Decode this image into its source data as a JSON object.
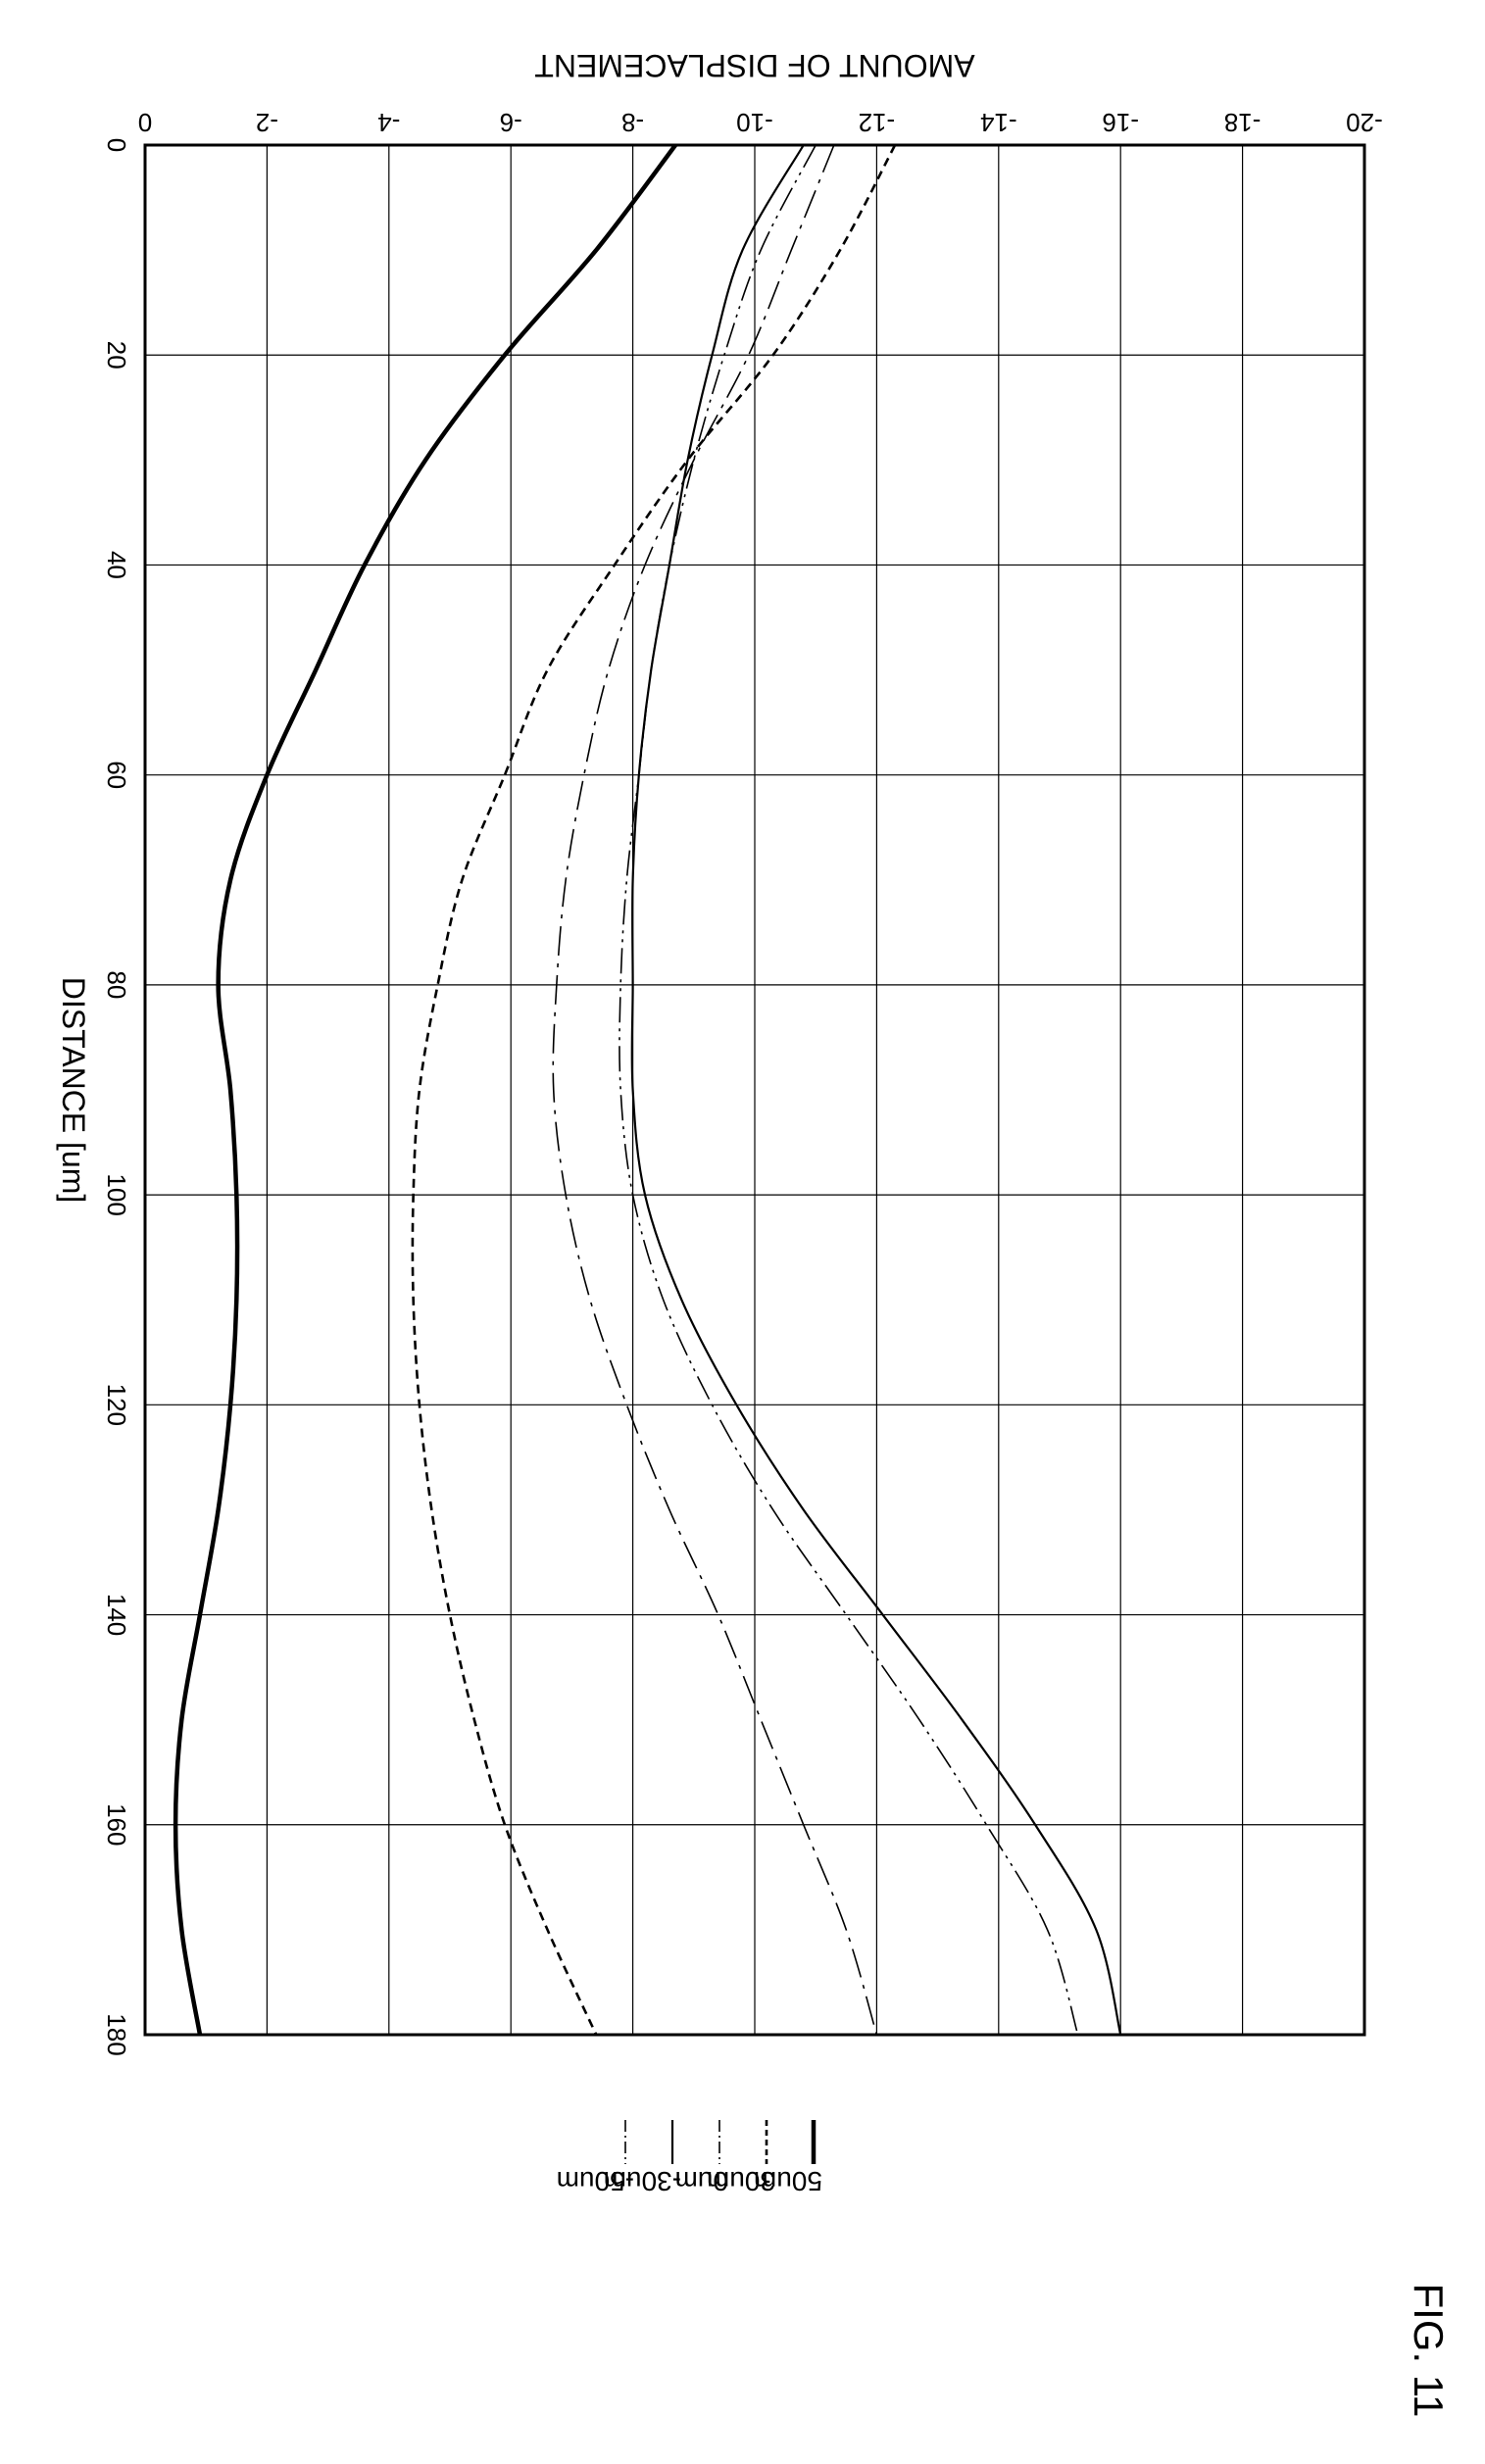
{
  "figure_label": "FIG. 11",
  "chart_data": {
    "type": "line",
    "xlabel": "DISTANCE  [um]",
    "ylabel": "AMOUNT OF DISPLACEMENT",
    "xlim": [
      0,
      180
    ],
    "ylim": [
      -20,
      0
    ],
    "x_ticks": [
      "0",
      "20",
      "40",
      "60",
      "80",
      "100",
      "120",
      "140",
      "160",
      "180"
    ],
    "y_ticks": [
      "-20",
      "-18",
      "-16",
      "-14",
      "-12",
      "-10",
      "-8",
      "-6",
      "-4",
      "-2",
      "0"
    ],
    "grid": true,
    "legend_position": "below plot (rotated)",
    "x": [
      0,
      10,
      20,
      30,
      40,
      50,
      60,
      70,
      80,
      90,
      100,
      110,
      120,
      130,
      140,
      150,
      160,
      170,
      180
    ],
    "series": [
      {
        "name": "-50um",
        "style": "dash-dot",
        "values": [
          -11.0,
          -10.1,
          -9.5,
          -9.0,
          -8.6,
          -8.3,
          -8.1,
          -7.9,
          -7.8,
          -7.8,
          -8.0,
          -8.5,
          -9.3,
          -10.3,
          -11.5,
          -12.7,
          -13.8,
          -14.8,
          -15.3
        ]
      },
      {
        "name": "-30um",
        "style": "solid-thin",
        "values": [
          -10.8,
          -9.8,
          -9.3,
          -8.9,
          -8.6,
          -8.3,
          -8.1,
          -8.0,
          -8.0,
          -8.0,
          -8.2,
          -8.8,
          -9.7,
          -10.8,
          -12.1,
          -13.4,
          -14.6,
          -15.6,
          -16.0
        ]
      },
      {
        "name": "0um",
        "style": "dash-dot-long",
        "values": [
          -11.3,
          -10.6,
          -9.9,
          -9.0,
          -8.2,
          -7.6,
          -7.2,
          -6.9,
          -6.75,
          -6.7,
          -6.9,
          -7.3,
          -7.9,
          -8.6,
          -9.4,
          -10.1,
          -10.8,
          -11.5,
          -12.0
        ]
      },
      {
        "name": "30um",
        "style": "dashed",
        "values": [
          -12.3,
          -11.4,
          -10.3,
          -8.9,
          -7.7,
          -6.6,
          -5.9,
          -5.2,
          -4.8,
          -4.5,
          -4.4,
          -4.4,
          -4.5,
          -4.7,
          -5.0,
          -5.4,
          -5.9,
          -6.6,
          -7.4
        ]
      },
      {
        "name": "50um",
        "style": "solid-thick",
        "values": [
          -8.7,
          -7.4,
          -5.9,
          -4.6,
          -3.6,
          -2.8,
          -2.0,
          -1.4,
          -1.2,
          -1.4,
          -1.5,
          -1.5,
          -1.4,
          -1.2,
          -0.9,
          -0.6,
          -0.5,
          -0.6,
          -0.9
        ]
      }
    ]
  }
}
